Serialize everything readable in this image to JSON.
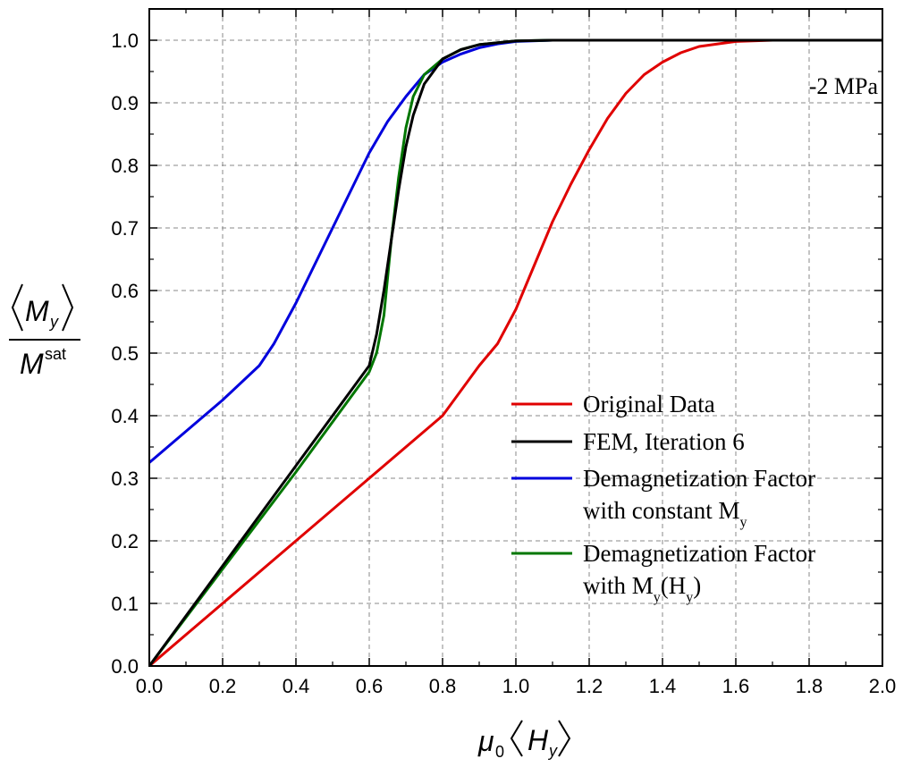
{
  "chart_data": {
    "type": "line",
    "xlim": [
      0.0,
      2.0
    ],
    "ylim": [
      0.0,
      1.05
    ],
    "x_ticks": [
      "0.0",
      "0.2",
      "0.4",
      "0.6",
      "0.8",
      "1.0",
      "1.2",
      "1.4",
      "1.6",
      "1.8",
      "2.0"
    ],
    "y_ticks": [
      "0.0",
      "0.1",
      "0.2",
      "0.3",
      "0.4",
      "0.5",
      "0.6",
      "0.7",
      "0.8",
      "0.9",
      "1.0"
    ],
    "grid": true,
    "legend_position": "bottom-right",
    "xlabel": {
      "prefix": "μ",
      "prefix_sub": "0",
      "symbol": "H",
      "sub": "y"
    },
    "ylabel": {
      "num_symbol": "M",
      "num_sub": "y",
      "den_symbol": "M",
      "den_sup": "sat"
    },
    "annotation": "-2 MPa",
    "legend": [
      {
        "line1": "Original Data",
        "color": "#e00000"
      },
      {
        "line1": "FEM, Iteration 6",
        "color": "#000000"
      },
      {
        "line1": "Demagnetization Factor",
        "line2": "with constant M",
        "line2_sub": "y",
        "color": "#0000dd"
      },
      {
        "line1": "Demagnetization Factor",
        "line2": "with  M",
        "line2_sub": "y",
        "line2_tail": "(H",
        "line2_tail_sub": "y",
        "line2_end": ")",
        "color": "#007700"
      }
    ],
    "series": [
      {
        "color": "#e00000",
        "x": [
          0.0,
          0.2,
          0.4,
          0.6,
          0.8,
          0.9,
          0.95,
          1.0,
          1.05,
          1.1,
          1.15,
          1.2,
          1.25,
          1.3,
          1.35,
          1.4,
          1.45,
          1.5,
          1.6,
          1.7,
          2.0
        ],
        "y": [
          0.0,
          0.1,
          0.2,
          0.3,
          0.4,
          0.48,
          0.515,
          0.57,
          0.64,
          0.71,
          0.77,
          0.825,
          0.875,
          0.915,
          0.945,
          0.965,
          0.98,
          0.99,
          0.998,
          1.0,
          1.0
        ]
      },
      {
        "color": "#000000",
        "x": [
          0.0,
          0.2,
          0.4,
          0.6,
          0.62,
          0.64,
          0.66,
          0.68,
          0.7,
          0.72,
          0.75,
          0.8,
          0.85,
          0.9,
          1.0,
          1.1,
          2.0
        ],
        "y": [
          0.0,
          0.16,
          0.32,
          0.48,
          0.53,
          0.6,
          0.68,
          0.76,
          0.83,
          0.88,
          0.93,
          0.97,
          0.985,
          0.993,
          0.999,
          1.0,
          1.0
        ]
      },
      {
        "color": "#0000dd",
        "x": [
          0.0,
          0.1,
          0.2,
          0.3,
          0.34,
          0.4,
          0.45,
          0.5,
          0.55,
          0.6,
          0.65,
          0.7,
          0.75,
          0.8,
          0.85,
          0.9,
          0.95,
          1.0,
          1.1,
          2.0
        ],
        "y": [
          0.325,
          0.375,
          0.425,
          0.48,
          0.515,
          0.58,
          0.64,
          0.7,
          0.76,
          0.82,
          0.87,
          0.91,
          0.945,
          0.965,
          0.978,
          0.988,
          0.994,
          0.998,
          1.0,
          1.0
        ]
      },
      {
        "color": "#007700",
        "x": [
          0.0,
          0.2,
          0.4,
          0.6,
          0.62,
          0.64,
          0.66,
          0.68,
          0.7,
          0.72,
          0.75,
          0.8,
          0.85,
          0.9,
          1.0,
          1.1,
          2.0
        ],
        "y": [
          0.0,
          0.155,
          0.31,
          0.47,
          0.5,
          0.56,
          0.68,
          0.78,
          0.86,
          0.91,
          0.945,
          0.97,
          0.985,
          0.993,
          0.999,
          1.0,
          1.0
        ]
      }
    ]
  }
}
